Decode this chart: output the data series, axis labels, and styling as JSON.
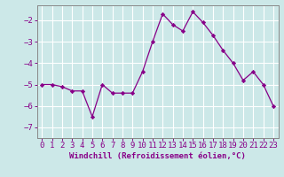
{
  "x": [
    0,
    1,
    2,
    3,
    4,
    5,
    6,
    7,
    8,
    9,
    10,
    11,
    12,
    13,
    14,
    15,
    16,
    17,
    18,
    19,
    20,
    21,
    22,
    23
  ],
  "y": [
    -5.0,
    -5.0,
    -5.1,
    -5.3,
    -5.3,
    -6.5,
    -5.0,
    -5.4,
    -5.4,
    -5.4,
    -4.4,
    -3.0,
    -1.7,
    -2.2,
    -2.5,
    -1.6,
    -2.1,
    -2.7,
    -3.4,
    -4.0,
    -4.8,
    -4.4,
    -5.0,
    -6.0
  ],
  "line_color": "#880088",
  "marker": "D",
  "marker_size": 2.2,
  "background_color": "#cce8e8",
  "grid_color": "#ffffff",
  "xlabel": "Windchill (Refroidissement éolien,°C)",
  "xlabel_fontsize": 6.5,
  "tick_fontsize": 6.5,
  "ylim": [
    -7.5,
    -1.3
  ],
  "yticks": [
    -7,
    -6,
    -5,
    -4,
    -3,
    -2
  ],
  "xticks": [
    0,
    1,
    2,
    3,
    4,
    5,
    6,
    7,
    8,
    9,
    10,
    11,
    12,
    13,
    14,
    15,
    16,
    17,
    18,
    19,
    20,
    21,
    22,
    23
  ],
  "linewidth": 0.9
}
